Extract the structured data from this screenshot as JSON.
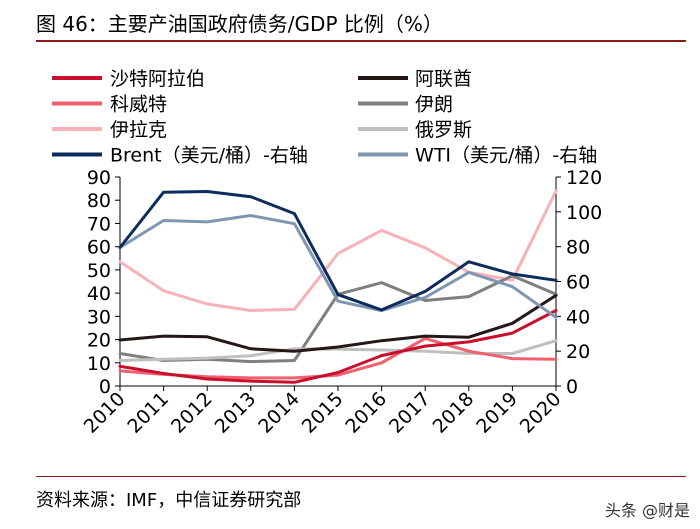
{
  "figure": {
    "title": "图 46：主要产油国政府债务/GDP 比例（%）",
    "source": "资料来源：IMF，中信证券研究部",
    "watermark": "头条 @财是"
  },
  "chart_data": {
    "type": "line",
    "x": [
      "2010",
      "2011",
      "2012",
      "2013",
      "2014",
      "2015",
      "2016",
      "2017",
      "2018",
      "2019",
      "2020"
    ],
    "y_left": {
      "min": 0,
      "max": 90,
      "ticks": [
        0,
        10,
        20,
        30,
        40,
        50,
        60,
        70,
        80,
        90
      ]
    },
    "y_right": {
      "min": 0,
      "max": 120,
      "ticks": [
        0,
        20,
        40,
        60,
        80,
        100,
        120
      ]
    },
    "legend_position": "top",
    "grid": false,
    "series": [
      {
        "name": "沙特阿拉伯",
        "axis": "left",
        "color": "#c8102e",
        "width": 3,
        "values": [
          8.5,
          5.4,
          3.0,
          2.1,
          1.6,
          5.8,
          13.1,
          17.2,
          19.0,
          22.8,
          32.5
        ]
      },
      {
        "name": "阿联酋",
        "axis": "left",
        "color": "#231815",
        "width": 3,
        "values": [
          19.8,
          21.5,
          21.2,
          16.0,
          15.0,
          16.8,
          19.5,
          21.5,
          21.0,
          27.0,
          39.0
        ]
      },
      {
        "name": "科威特",
        "axis": "left",
        "color": "#f0606e",
        "width": 3,
        "values": [
          6.5,
          5.0,
          4.0,
          3.5,
          3.5,
          4.7,
          10.0,
          20.5,
          15.0,
          11.8,
          11.5
        ]
      },
      {
        "name": "伊朗",
        "axis": "left",
        "color": "#7f7f7f",
        "width": 3,
        "values": [
          14.0,
          11.0,
          11.5,
          10.5,
          11.0,
          39.5,
          44.5,
          36.8,
          38.5,
          47.5,
          39.5
        ]
      },
      {
        "name": "伊拉克",
        "axis": "left",
        "color": "#f7b2b7",
        "width": 3,
        "values": [
          53.5,
          41.0,
          35.3,
          32.5,
          33.0,
          57.0,
          67.0,
          59.5,
          49.0,
          45.5,
          84.0
        ]
      },
      {
        "name": "俄罗斯",
        "axis": "left",
        "color": "#bfbfbf",
        "width": 3,
        "values": [
          11.0,
          11.5,
          12.0,
          13.0,
          16.0,
          15.9,
          15.5,
          15.0,
          14.0,
          14.0,
          19.5
        ]
      },
      {
        "name": "Brent（美元/桶）-右轴",
        "axis": "right",
        "color": "#0d2c5c",
        "width": 3,
        "values": [
          79.5,
          111.3,
          111.7,
          108.7,
          99.0,
          52.5,
          43.7,
          54.3,
          71.3,
          64.3,
          60.7
        ]
      },
      {
        "name": "WTI（美元/桶）-右轴",
        "axis": "right",
        "color": "#7f96b2",
        "width": 3,
        "values": [
          79.5,
          95.0,
          94.2,
          97.9,
          93.2,
          48.7,
          43.3,
          50.8,
          65.2,
          57.0,
          39.4
        ]
      }
    ]
  }
}
